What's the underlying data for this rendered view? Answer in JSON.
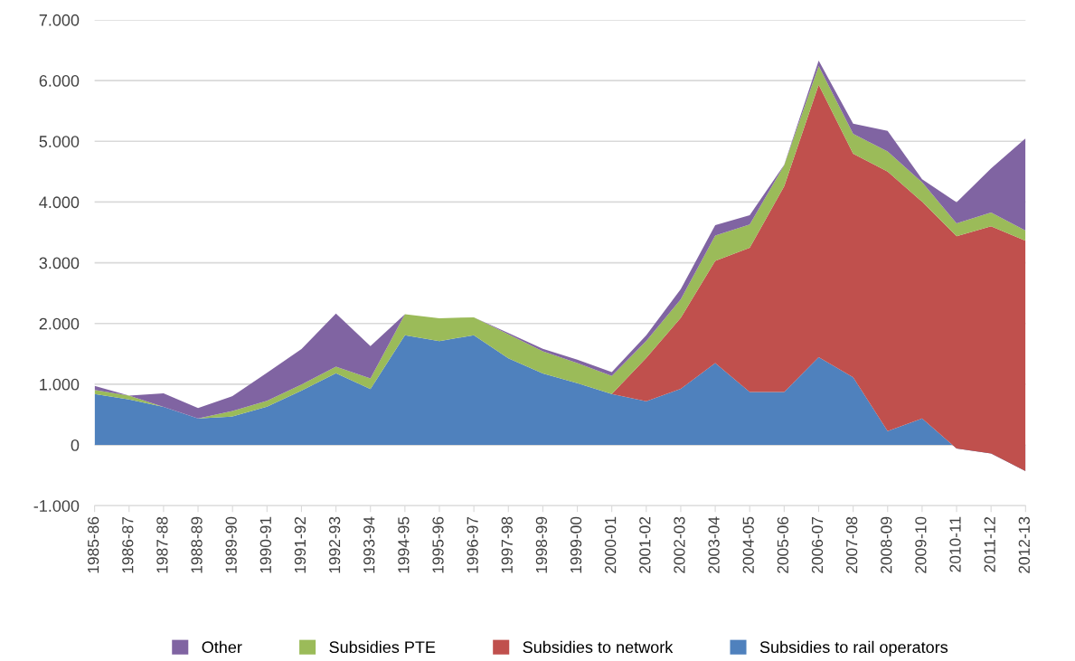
{
  "chart_data": {
    "type": "area",
    "stacked": true,
    "categories": [
      "1985-86",
      "1986-87",
      "1987-88",
      "1988-89",
      "1989-90",
      "1990-91",
      "1991-92",
      "1992-93",
      "1993-94",
      "1994-95",
      "1995-96",
      "1996-97",
      "1997-98",
      "1998-99",
      "1999-00",
      "2000-01",
      "2001-02",
      "2002-03",
      "2003-04",
      "2004-05",
      "2005-06",
      "2006-07",
      "2007-08",
      "2008-09",
      "2009-10",
      "2010-11",
      "2011-12",
      "2012-13"
    ],
    "series": [
      {
        "name": "Subsidies to rail operators",
        "color": "#4f81bd",
        "values": [
          840,
          748,
          626,
          438,
          468,
          631,
          896,
          1181,
          921,
          1807,
          1710,
          1807,
          1425,
          1176,
          1018,
          840,
          720,
          923,
          1349,
          872,
          872,
          1445,
          1115,
          228,
          436,
          -60,
          -140,
          -430
        ]
      },
      {
        "name": "Subsidies to network",
        "color": "#c0504d",
        "values": [
          0,
          0,
          0,
          0,
          0,
          0,
          0,
          0,
          0,
          0,
          0,
          0,
          0,
          0,
          0,
          0,
          715,
          1171,
          1683,
          2373,
          3387,
          4485,
          3681,
          4274,
          3569,
          3497,
          3740,
          3791
        ]
      },
      {
        "name": "Subsidies PTE",
        "color": "#9bbb59",
        "values": [
          66,
          66,
          0,
          0,
          92,
          97,
          97,
          107,
          173,
          346,
          377,
          295,
          397,
          366,
          331,
          295,
          279,
          304,
          416,
          385,
          345,
          310,
          325,
          330,
          320,
          213,
          228,
          168
        ]
      },
      {
        "name": "Other",
        "color": "#8064a2",
        "values": [
          66,
          0,
          224,
          168,
          244,
          462,
          585,
          875,
          535,
          0,
          0,
          0,
          21,
          41,
          56,
          66,
          91,
          167,
          172,
          152,
          10,
          90,
          170,
          339,
          50,
          345,
          725,
          1521
        ]
      }
    ],
    "ylim": [
      -1000,
      7000
    ],
    "yticks": [
      {
        "value": -1000,
        "label": "-1.000"
      },
      {
        "value": 0,
        "label": "0"
      },
      {
        "value": 1000,
        "label": "1.000"
      },
      {
        "value": 2000,
        "label": "2.000"
      },
      {
        "value": 3000,
        "label": "3.000"
      },
      {
        "value": 4000,
        "label": "4.000"
      },
      {
        "value": 5000,
        "label": "5.000"
      },
      {
        "value": 6000,
        "label": "6.000"
      },
      {
        "value": 7000,
        "label": "7.000"
      }
    ],
    "grid": "y",
    "legend": "bottom"
  }
}
